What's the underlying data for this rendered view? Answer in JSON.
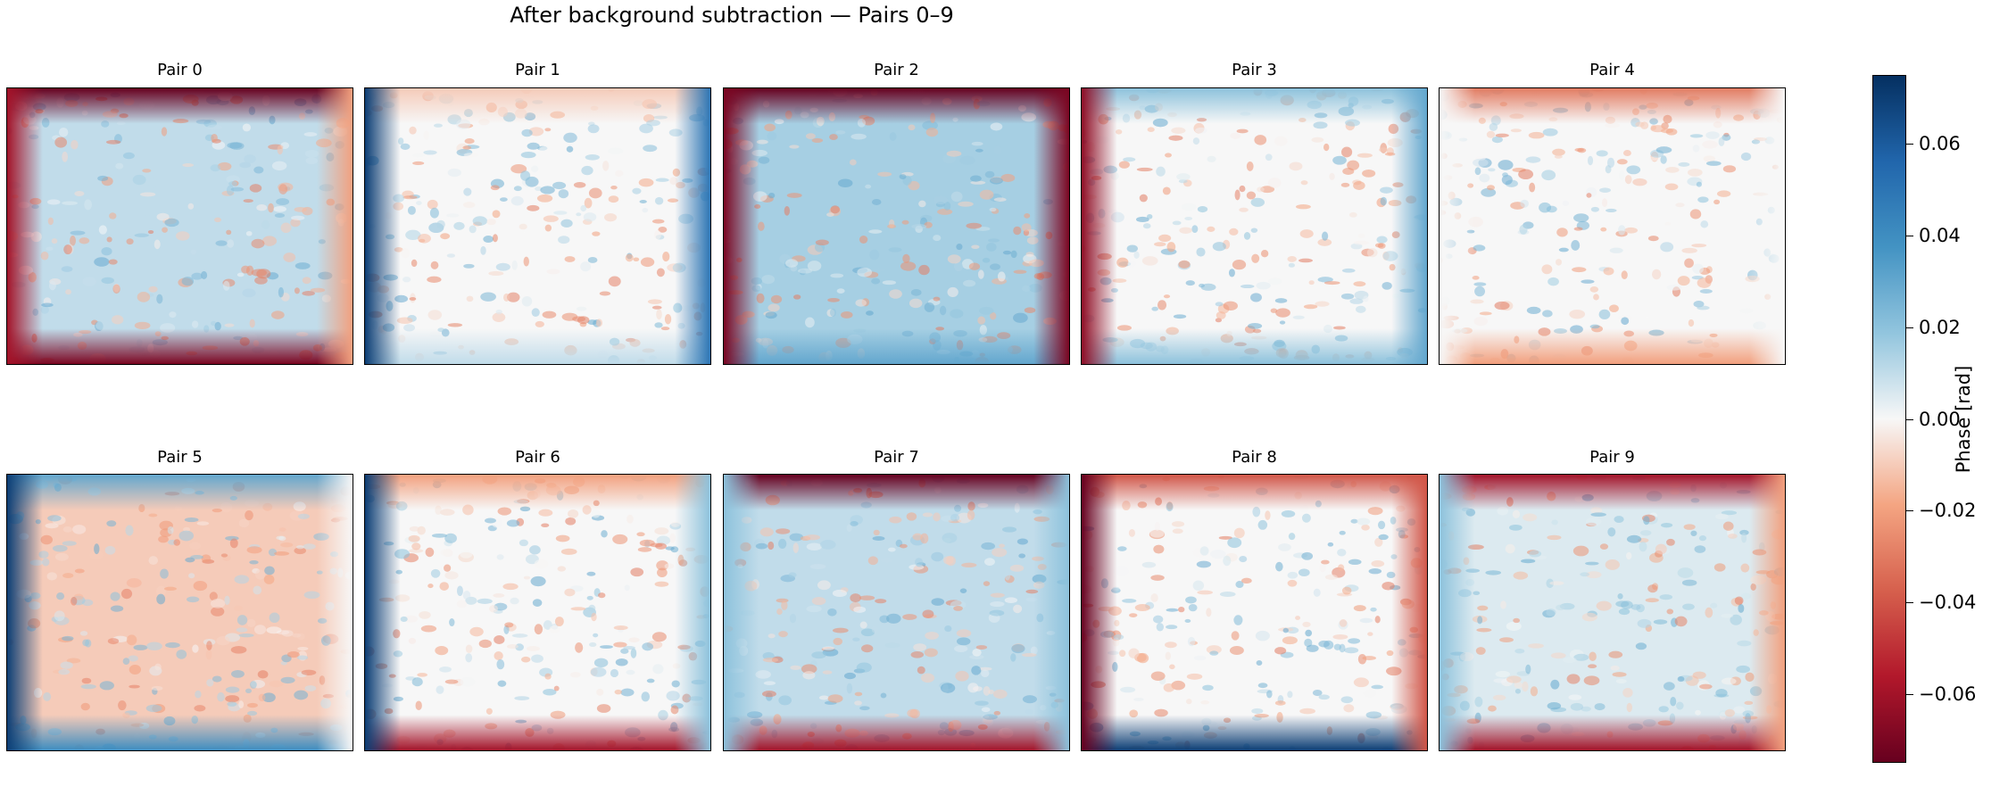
{
  "chart_data": {
    "type": "heatmap",
    "title": "After background subtraction — Pairs 0–9",
    "colormap": "RdBu",
    "colorbar": {
      "label": "Phase [rad]",
      "range": [
        -0.075,
        0.075
      ],
      "ticks": [
        0.06,
        0.04,
        0.02,
        0.0,
        -0.02,
        -0.04,
        -0.06
      ],
      "tick_labels": [
        "0.06",
        "0.04",
        "0.02",
        "0.00",
        "−0.02",
        "−0.04",
        "−0.06"
      ]
    },
    "panels": [
      {
        "title": "Pair 0",
        "edges": {
          "top": -0.075,
          "bottom": -0.07,
          "left": -0.06,
          "right": -0.02
        },
        "interior": 0.01
      },
      {
        "title": "Pair 1",
        "edges": {
          "top": -0.01,
          "bottom": 0.01,
          "left": 0.07,
          "right": 0.05
        },
        "interior": 0.0
      },
      {
        "title": "Pair 2",
        "edges": {
          "top": -0.075,
          "bottom": 0.03,
          "left": -0.07,
          "right": -0.07
        },
        "interior": 0.015
      },
      {
        "title": "Pair 3",
        "edges": {
          "top": 0.02,
          "bottom": 0.02,
          "left": -0.065,
          "right": 0.03
        },
        "interior": 0.0
      },
      {
        "title": "Pair 4",
        "edges": {
          "top": -0.03,
          "bottom": -0.02,
          "left": 0.0,
          "right": 0.0
        },
        "interior": 0.0
      },
      {
        "title": "Pair 5",
        "edges": {
          "top": 0.03,
          "bottom": 0.04,
          "left": 0.07,
          "right": 0.0
        },
        "interior": -0.01
      },
      {
        "title": "Pair 6",
        "edges": {
          "top": -0.02,
          "bottom": -0.06,
          "left": 0.07,
          "right": 0.02
        },
        "interior": 0.0
      },
      {
        "title": "Pair 7",
        "edges": {
          "top": -0.075,
          "bottom": -0.06,
          "left": 0.02,
          "right": 0.02
        },
        "interior": 0.01
      },
      {
        "title": "Pair 8",
        "edges": {
          "top": -0.04,
          "bottom": 0.07,
          "left": -0.075,
          "right": -0.04
        },
        "interior": 0.0
      },
      {
        "title": "Pair 9",
        "edges": {
          "top": -0.06,
          "bottom": -0.06,
          "left": 0.02,
          "right": -0.02
        },
        "interior": 0.005
      }
    ]
  }
}
